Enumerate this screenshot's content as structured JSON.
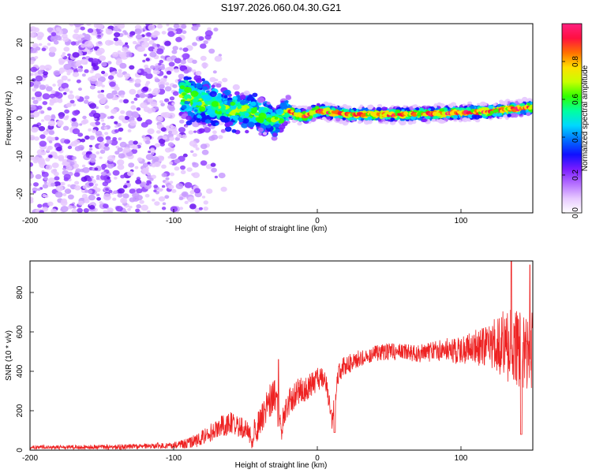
{
  "title": "S197.2026.060.04.30.G21",
  "colorbar": {
    "label": "Normalized spectral amplitude",
    "range": [
      0.0,
      1.0
    ],
    "ticks": [
      0.0,
      0.2,
      0.4,
      0.6,
      0.8
    ],
    "tick_labels": [
      "0.0",
      "0.2",
      "0.4",
      "0.6",
      "0.8"
    ],
    "colors": [
      "#ffffff",
      "#e6c8ff",
      "#b46eff",
      "#7a1cff",
      "#1010ff",
      "#0070ff",
      "#00d8ff",
      "#00ffa0",
      "#30ff00",
      "#c8ff00",
      "#ffe000",
      "#ff7000",
      "#ff1040",
      "#ff2080"
    ]
  },
  "chart_data": [
    {
      "type": "heatmap",
      "name": "spectrogram",
      "title": "S197.2026.060.04.30.G21",
      "xlabel": "Height of straight line (km)",
      "ylabel": "Frequency (Hz)",
      "xlim": [
        -200,
        150
      ],
      "ylim": [
        -25,
        25
      ],
      "x_ticks": [
        -200,
        -100,
        0,
        100
      ],
      "x_tick_labels": [
        "-200",
        "-100",
        "0",
        "100"
      ],
      "y_ticks": [
        -20,
        -10,
        0,
        10,
        20
      ],
      "y_tick_labels": [
        "-20",
        "-10",
        "0",
        "10",
        "20"
      ],
      "ridge": {
        "x": [
          -200,
          -150,
          -110,
          -100,
          -90,
          -80,
          -70,
          -60,
          -50,
          -40,
          -35,
          -30,
          -25,
          -20,
          -15,
          -10,
          -5,
          0,
          10,
          20,
          40,
          60,
          80,
          100,
          120,
          140,
          150
        ],
        "y": [
          0,
          3,
          6,
          7,
          6,
          4,
          3,
          2,
          2,
          1,
          0,
          -1,
          0.5,
          2,
          1,
          0.5,
          1,
          2,
          1.5,
          1,
          1,
          1,
          1.2,
          1.5,
          1.8,
          2.5,
          3
        ]
      },
      "noise_extent_x": [
        -200,
        -100
      ],
      "band_start_x": -95,
      "strong_band_x": [
        -20,
        150
      ]
    },
    {
      "type": "line",
      "name": "snr",
      "xlabel": "Height of straight line (km)",
      "ylabel": "SNR (10 * v/v)",
      "xlim": [
        -200,
        150
      ],
      "ylim": [
        0,
        960
      ],
      "x_ticks": [
        -200,
        -100,
        0,
        100
      ],
      "x_tick_labels": [
        "-200",
        "-100",
        "0",
        "100"
      ],
      "y_ticks": [
        0,
        200,
        400,
        600,
        800
      ],
      "y_tick_labels": [
        "0",
        "200",
        "400",
        "600",
        "800"
      ],
      "line_color": "#ee2222",
      "envelope": {
        "x": [
          -200,
          -150,
          -120,
          -100,
          -90,
          -80,
          -70,
          -60,
          -50,
          -45,
          -40,
          -35,
          -30,
          -25,
          -20,
          -15,
          -10,
          -5,
          0,
          5,
          10,
          15,
          20,
          30,
          40,
          50,
          60,
          70,
          80,
          90,
          100,
          110,
          120,
          130,
          140,
          150
        ],
        "y": [
          15,
          15,
          20,
          25,
          35,
          60,
          110,
          140,
          100,
          70,
          140,
          230,
          280,
          110,
          240,
          280,
          310,
          330,
          360,
          380,
          150,
          400,
          430,
          470,
          490,
          500,
          500,
          490,
          500,
          510,
          500,
          520,
          530,
          540,
          520,
          500
        ]
      },
      "spread": {
        "x": [
          -200,
          -100,
          -80,
          -60,
          -40,
          -30,
          -20,
          0,
          40,
          80,
          100,
          120,
          130,
          140,
          150
        ],
        "y": [
          10,
          15,
          40,
          60,
          70,
          90,
          80,
          60,
          40,
          50,
          70,
          110,
          180,
          220,
          200
        ]
      },
      "dips": [
        {
          "x": 12,
          "y": 90
        },
        {
          "x": 142,
          "y": 80
        }
      ],
      "peaks": [
        {
          "x": -27,
          "y": 460
        },
        {
          "x": 135,
          "y": 960
        },
        {
          "x": 148,
          "y": 940
        }
      ]
    }
  ]
}
